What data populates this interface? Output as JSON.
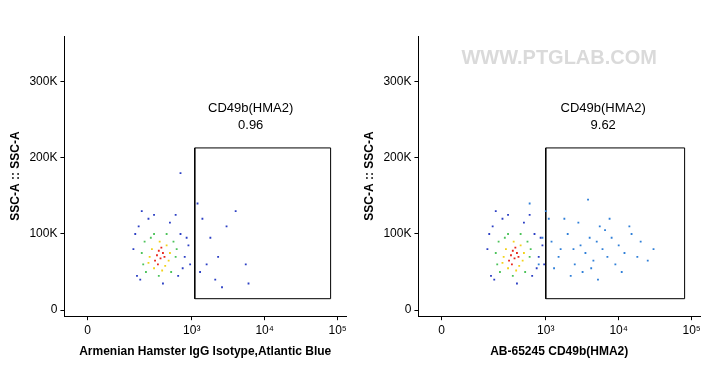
{
  "chart_data": [
    {
      "type": "scatter",
      "x_label": "Armenian Hamster IgG Isotype,Atlantic Blue",
      "y_label": "SSC-A :: SSC-A",
      "xlim": [
        -60,
        130000
      ],
      "xticks": [
        0,
        {
          "value": 1000,
          "label": "10³"
        },
        {
          "value": 10000,
          "label": "10⁴"
        },
        {
          "value": 100000,
          "label": "10⁵"
        }
      ],
      "ylim": [
        -8000,
        360000
      ],
      "yticks": [
        0,
        {
          "value": 100000,
          "label": "100K"
        },
        {
          "value": 200000,
          "label": "200K"
        },
        {
          "value": 300000,
          "label": "300K"
        }
      ],
      "grid": false,
      "marker": "square",
      "gate": {
        "label": "CD49b(HMA2)",
        "value": 0.96,
        "x": [
          1100,
          80000
        ],
        "y": [
          15000,
          213000
        ]
      },
      "series": [
        {
          "color": "#e8261b",
          "x": [
            330,
            370,
            350,
            400,
            310,
            420,
            380,
            340
          ],
          "values": [
            72000,
            68000,
            78000,
            75000,
            65000,
            70000,
            82000,
            60000
          ]
        },
        {
          "color": "#f2d21b",
          "x": [
            280,
            450,
            300,
            480,
            260,
            430,
            360,
            500,
            250,
            390
          ],
          "values": [
            80000,
            85000,
            55000,
            65000,
            70000,
            58000,
            90000,
            75000,
            62000,
            52000
          ]
        },
        {
          "color": "#4cc35a",
          "x": [
            220,
            560,
            230,
            600,
            200,
            520,
            300,
            450,
            210,
            620,
            350,
            270
          ],
          "values": [
            90000,
            90000,
            50000,
            70000,
            75000,
            50000,
            100000,
            100000,
            60000,
            80000,
            45000,
            95000
          ]
        },
        {
          "color": "#2b3fc4",
          "x": [
            180,
            700,
            170,
            800,
            150,
            650,
            250,
            500,
            190,
            900,
            160,
            750,
            300,
            400,
            950,
            850,
            600,
            200,
            1200,
            1800,
            2300,
            4000,
            2100,
            5500,
            1400,
            3000,
            700,
            1600,
            6000,
            2600,
            1300
          ],
          "values": [
            110000,
            100000,
            45000,
            70000,
            80000,
            45000,
            120000,
            115000,
            40000,
            85000,
            100000,
            55000,
            125000,
            35000,
            60000,
            95000,
            125000,
            130000,
            140000,
            95000,
            70000,
            130000,
            40000,
            60000,
            120000,
            110000,
            180000,
            60000,
            35000,
            30000,
            50000
          ]
        }
      ]
    },
    {
      "type": "scatter",
      "x_label": "AB-65245 CD49b(HMA2)",
      "y_label": "SSC-A :: SSC-A",
      "watermark": "WWW.PTGLAB.COM",
      "xlim": [
        -60,
        130000
      ],
      "xticks": [
        0,
        {
          "value": 1000,
          "label": "10³"
        },
        {
          "value": 10000,
          "label": "10⁴"
        },
        {
          "value": 100000,
          "label": "10⁵"
        }
      ],
      "ylim": [
        -8000,
        360000
      ],
      "yticks": [
        0,
        {
          "value": 100000,
          "label": "100K"
        },
        {
          "value": 200000,
          "label": "200K"
        },
        {
          "value": 300000,
          "label": "300K"
        }
      ],
      "grid": false,
      "marker": "square",
      "gate": {
        "label": "CD49b(HMA2)",
        "value": 9.62,
        "x": [
          1000,
          80000
        ],
        "y": [
          15000,
          213000
        ]
      },
      "series": [
        {
          "color": "#e8261b",
          "x": [
            330,
            370,
            350,
            400,
            310,
            420,
            380,
            340
          ],
          "values": [
            72000,
            68000,
            78000,
            75000,
            65000,
            70000,
            82000,
            60000
          ]
        },
        {
          "color": "#f2d21b",
          "x": [
            280,
            450,
            300,
            480,
            260,
            430,
            360,
            500,
            250,
            390
          ],
          "values": [
            80000,
            85000,
            55000,
            65000,
            70000,
            58000,
            90000,
            75000,
            62000,
            52000
          ]
        },
        {
          "color": "#4cc35a",
          "x": [
            220,
            560,
            230,
            600,
            200,
            520,
            300,
            450,
            210,
            620,
            350,
            270
          ],
          "values": [
            90000,
            90000,
            50000,
            70000,
            75000,
            50000,
            100000,
            100000,
            60000,
            80000,
            45000,
            95000
          ]
        },
        {
          "color": "#2b3fc4",
          "x": [
            180,
            700,
            170,
            800,
            150,
            650,
            250,
            500,
            190,
            900,
            160,
            750,
            300,
            400,
            950,
            850,
            600,
            200
          ],
          "values": [
            110000,
            100000,
            45000,
            70000,
            80000,
            45000,
            120000,
            115000,
            40000,
            85000,
            100000,
            55000,
            125000,
            35000,
            60000,
            95000,
            125000,
            130000
          ]
        },
        {
          "color": "#2f7fd8",
          "x": [
            1200,
            1500,
            2000,
            2500,
            3000,
            3500,
            4000,
            4500,
            5000,
            6000,
            7000,
            8000,
            9000,
            10000,
            12000,
            15000,
            18000,
            1100,
            1300,
            1800,
            2200,
            2800,
            3200,
            6500,
            4200,
            5500,
            1600,
            2400,
            20000,
            25000,
            900,
            800,
            30000,
            1000,
            600,
            3800,
            7500,
            11000,
            14000,
            5200
          ],
          "values": [
            90000,
            70000,
            100000,
            60000,
            85000,
            75000,
            95000,
            65000,
            90000,
            80000,
            70000,
            95000,
            60000,
            85000,
            75000,
            100000,
            70000,
            120000,
            55000,
            120000,
            45000,
            115000,
            50000,
            105000,
            55000,
            110000,
            80000,
            80000,
            90000,
            65000,
            95000,
            60000,
            80000,
            130000,
            140000,
            145000,
            120000,
            50000,
            110000,
            40000
          ]
        }
      ]
    }
  ]
}
